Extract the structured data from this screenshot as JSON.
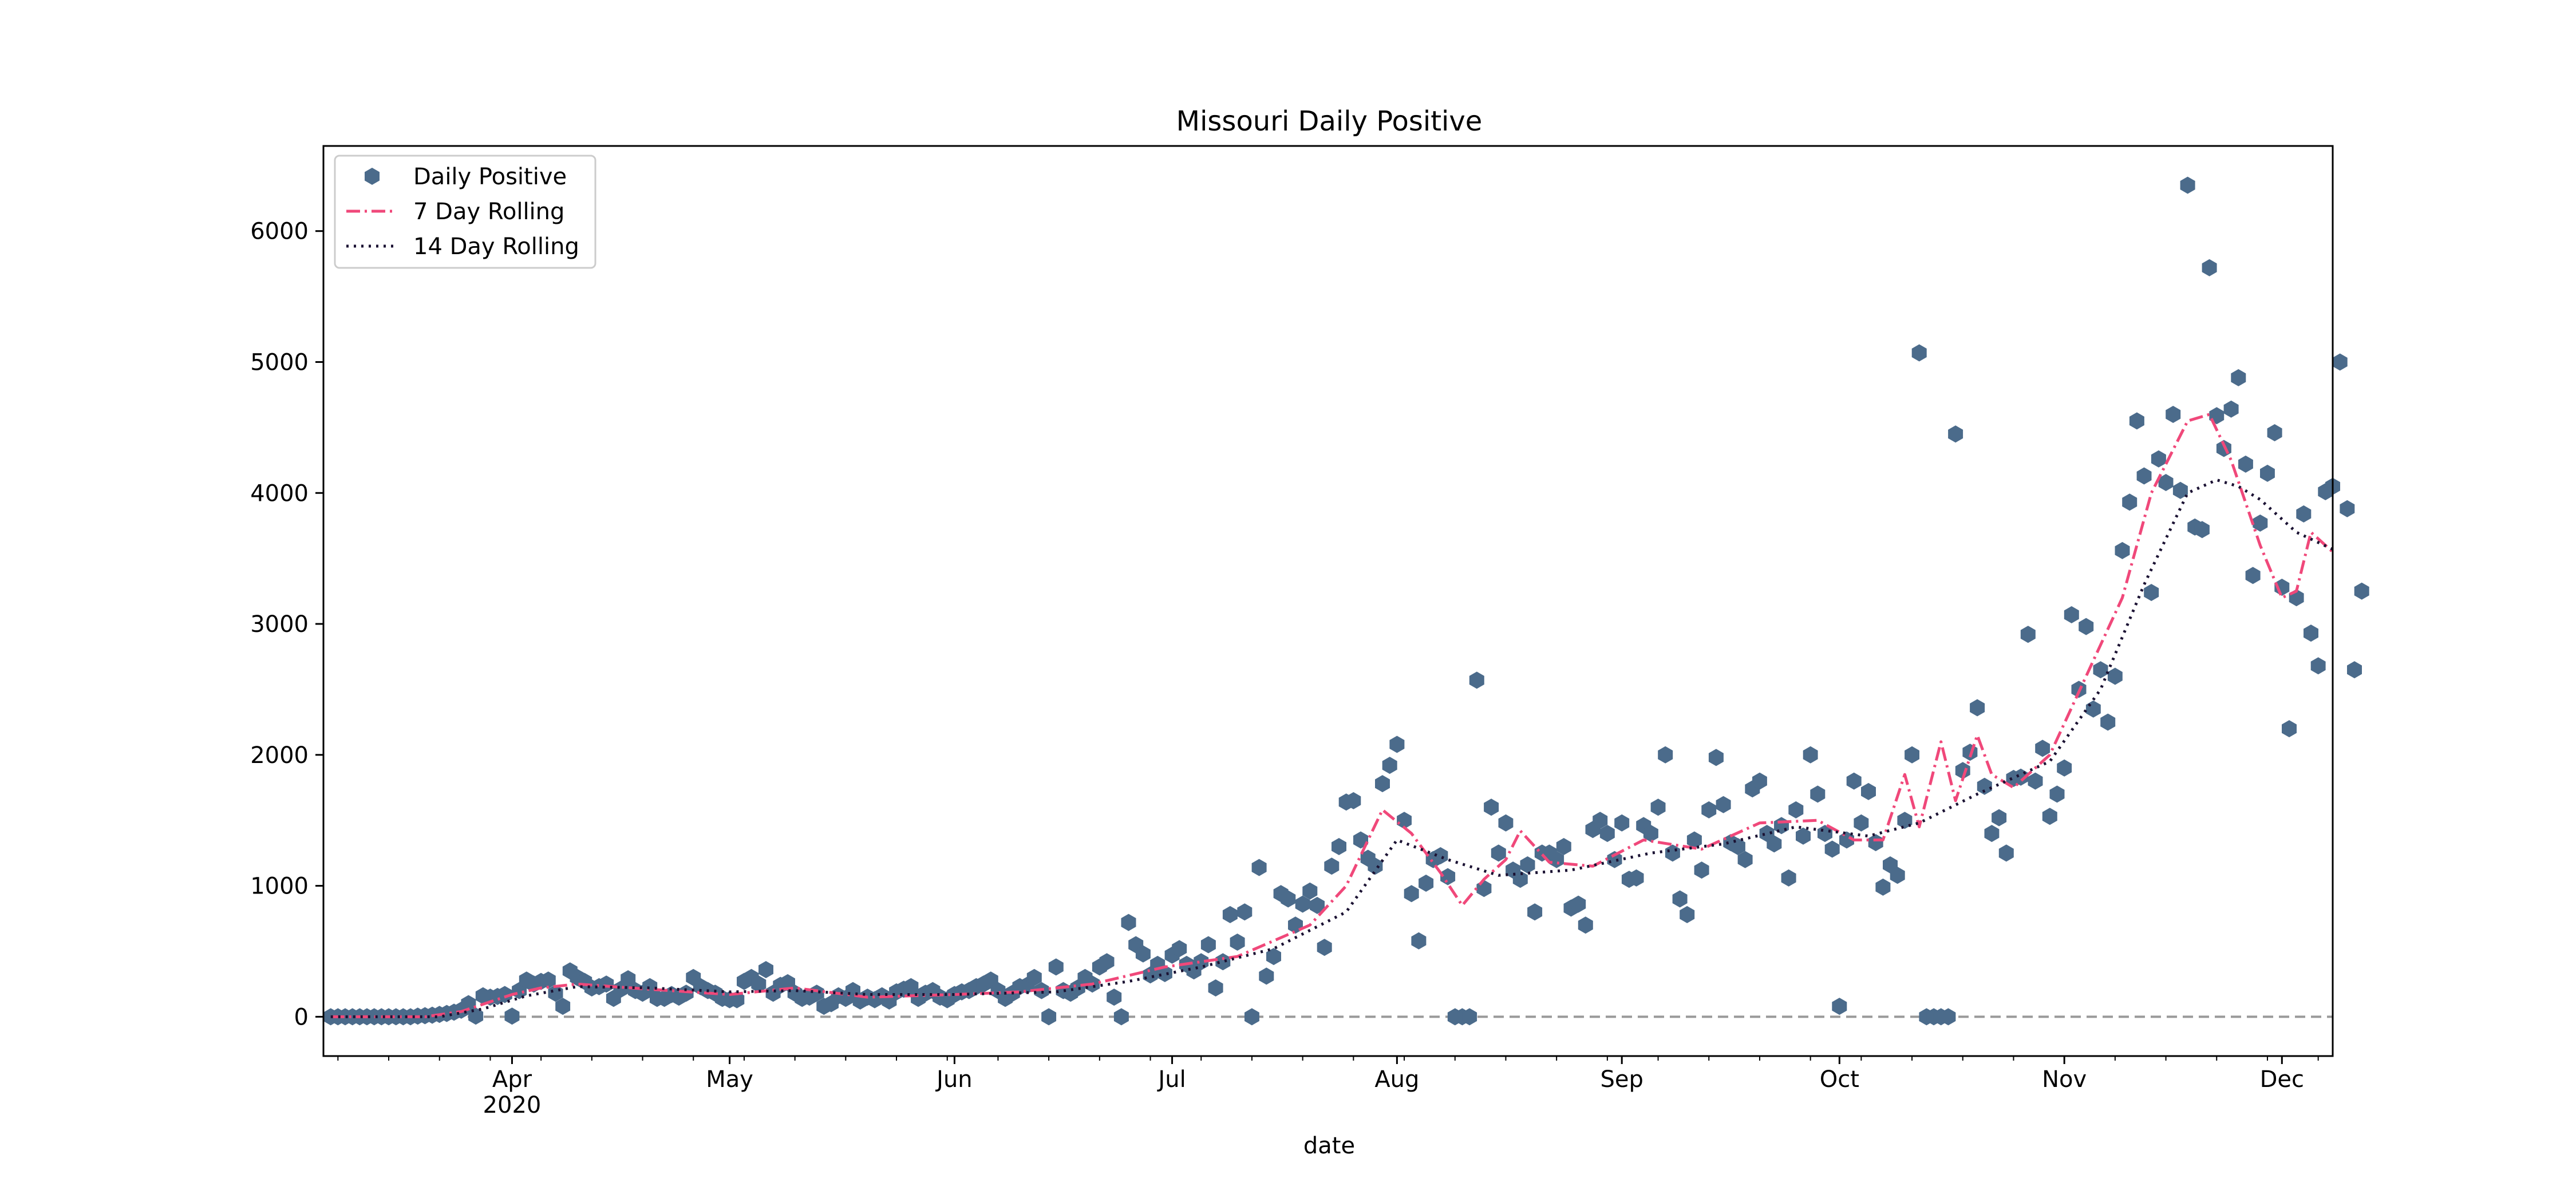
{
  "chart_data": {
    "type": "line",
    "title": "Missouri Daily Positive",
    "xlabel": "date",
    "ylabel": "",
    "start_date": "2020-03-07",
    "end_date": "2020-12-08",
    "xlim": [
      "2020-03-06",
      "2020-12-08"
    ],
    "ylim": [
      -300,
      6650
    ],
    "y_ticks": [
      0,
      1000,
      2000,
      3000,
      4000,
      5000,
      6000
    ],
    "x_ticks": [
      {
        "date": "2020-04-01",
        "label": "Apr",
        "sublabel": "2020"
      },
      {
        "date": "2020-05-01",
        "label": "May",
        "sublabel": ""
      },
      {
        "date": "2020-06-01",
        "label": "Jun",
        "sublabel": ""
      },
      {
        "date": "2020-07-01",
        "label": "Jul",
        "sublabel": ""
      },
      {
        "date": "2020-08-01",
        "label": "Aug",
        "sublabel": ""
      },
      {
        "date": "2020-09-01",
        "label": "Sep",
        "sublabel": ""
      },
      {
        "date": "2020-10-01",
        "label": "Oct",
        "sublabel": ""
      },
      {
        "date": "2020-11-01",
        "label": "Nov",
        "sublabel": ""
      },
      {
        "date": "2020-12-01",
        "label": "Dec",
        "sublabel": ""
      }
    ],
    "legend_placement": "upper-left",
    "grid": false,
    "zero_reference_line": {
      "y": 0,
      "color": "#999999",
      "style": "dashed"
    },
    "series": [
      {
        "name": "Daily Positive",
        "kind": "scatter",
        "marker": "hexagon",
        "color": "#4b6b8b",
        "values": [
          0,
          0,
          0,
          0,
          0,
          0,
          0,
          0,
          0,
          0,
          0,
          0,
          5,
          8,
          12,
          18,
          25,
          35,
          50,
          100,
          5,
          160,
          150,
          155,
          170,
          5,
          200,
          280,
          250,
          270,
          280,
          180,
          80,
          350,
          300,
          270,
          220,
          230,
          250,
          140,
          210,
          290,
          200,
          180,
          230,
          140,
          140,
          170,
          150,
          180,
          300,
          230,
          200,
          180,
          140,
          130,
          130,
          270,
          300,
          250,
          360,
          180,
          240,
          260,
          180,
          140,
          150,
          180,
          80,
          100,
          160,
          140,
          200,
          120,
          150,
          130,
          160,
          120,
          190,
          210,
          230,
          140,
          180,
          200,
          150,
          130,
          170,
          190,
          200,
          230,
          250,
          280,
          200,
          140,
          180,
          230,
          240,
          300,
          200,
          0,
          380,
          200,
          180,
          220,
          300,
          250,
          380,
          420,
          150,
          0,
          720,
          550,
          480,
          320,
          400,
          330,
          470,
          520,
          400,
          350,
          420,
          550,
          220,
          420,
          780,
          570,
          800,
          0,
          1140,
          310,
          460,
          940,
          900,
          700,
          860,
          960,
          850,
          530,
          1150,
          1300,
          1640,
          1650,
          1350,
          1210,
          1150,
          1780,
          1920,
          2080,
          1500,
          940,
          580,
          1020,
          1200,
          1230,
          1070,
          0,
          0,
          0,
          2570,
          980,
          1600,
          1250,
          1480,
          1120,
          1050,
          1160,
          800,
          1250,
          1250,
          1200,
          1300,
          830,
          860,
          700,
          1430,
          1500,
          1400,
          1200,
          1480,
          1050,
          1060,
          1460,
          1400,
          1600,
          2000,
          1250,
          900,
          780,
          1350,
          1120,
          1580,
          1980,
          1620,
          1330,
          1300,
          1200,
          1740,
          1800,
          1400,
          1320,
          1460,
          1060,
          1580,
          1380,
          2000,
          1700,
          1400,
          1280,
          80,
          1350,
          1800,
          1480,
          1720,
          1330,
          990,
          1160,
          1080,
          1500,
          2000,
          5070,
          0,
          0,
          0,
          0,
          4450,
          1880,
          2020,
          2360,
          1760,
          1400,
          1520,
          1250,
          1820,
          1830,
          2920,
          1800,
          2050,
          1530,
          1700,
          1900,
          3070,
          2500,
          2980,
          2350,
          2650,
          2250,
          2600,
          3560,
          3930,
          4550,
          4130,
          3240,
          4260,
          4080,
          4600,
          4020,
          6350,
          3740,
          3720,
          5720,
          4590,
          4340,
          4640,
          4880,
          4220,
          3370,
          3770,
          4150,
          4460,
          3280,
          2200,
          3200,
          3840,
          2930,
          2680,
          4010,
          4050,
          5000,
          3880,
          2650,
          3250
        ]
      },
      {
        "name": "7 Day Rolling",
        "kind": "line",
        "style": "dashdot",
        "color": "#f0487a",
        "points": [
          [
            "2020-03-07",
            0
          ],
          [
            "2020-03-20",
            0
          ],
          [
            "2020-03-25",
            40
          ],
          [
            "2020-04-01",
            170
          ],
          [
            "2020-04-05",
            220
          ],
          [
            "2020-04-10",
            250
          ],
          [
            "2020-04-20",
            210
          ],
          [
            "2020-05-01",
            170
          ],
          [
            "2020-05-10",
            220
          ],
          [
            "2020-05-20",
            150
          ],
          [
            "2020-06-01",
            170
          ],
          [
            "2020-06-10",
            190
          ],
          [
            "2020-06-20",
            250
          ],
          [
            "2020-06-30",
            380
          ],
          [
            "2020-07-10",
            460
          ],
          [
            "2020-07-20",
            700
          ],
          [
            "2020-07-25",
            1000
          ],
          [
            "2020-07-30",
            1580
          ],
          [
            "2020-08-03",
            1400
          ],
          [
            "2020-08-07",
            1100
          ],
          [
            "2020-08-10",
            850
          ],
          [
            "2020-08-13",
            1050
          ],
          [
            "2020-08-16",
            1200
          ],
          [
            "2020-08-18",
            1420
          ],
          [
            "2020-08-22",
            1180
          ],
          [
            "2020-08-28",
            1150
          ],
          [
            "2020-09-04",
            1350
          ],
          [
            "2020-09-12",
            1280
          ],
          [
            "2020-09-20",
            1480
          ],
          [
            "2020-09-28",
            1500
          ],
          [
            "2020-10-03",
            1350
          ],
          [
            "2020-10-07",
            1350
          ],
          [
            "2020-10-10",
            1850
          ],
          [
            "2020-10-12",
            1450
          ],
          [
            "2020-10-15",
            2100
          ],
          [
            "2020-10-17",
            1650
          ],
          [
            "2020-10-20",
            2150
          ],
          [
            "2020-10-22",
            1850
          ],
          [
            "2020-10-25",
            1750
          ],
          [
            "2020-10-30",
            2000
          ],
          [
            "2020-11-04",
            2600
          ],
          [
            "2020-11-09",
            3200
          ],
          [
            "2020-11-13",
            4000
          ],
          [
            "2020-11-18",
            4550
          ],
          [
            "2020-11-21",
            4600
          ],
          [
            "2020-11-24",
            4250
          ],
          [
            "2020-11-28",
            3600
          ],
          [
            "2020-12-01",
            3200
          ],
          [
            "2020-12-03",
            3250
          ],
          [
            "2020-12-05",
            3700
          ],
          [
            "2020-12-08",
            3550
          ]
        ]
      },
      {
        "name": "14 Day Rolling",
        "kind": "line",
        "style": "dotted",
        "color": "#1b1233",
        "points": [
          [
            "2020-03-07",
            0
          ],
          [
            "2020-03-22",
            0
          ],
          [
            "2020-03-28",
            60
          ],
          [
            "2020-04-03",
            160
          ],
          [
            "2020-04-10",
            230
          ],
          [
            "2020-04-20",
            220
          ],
          [
            "2020-05-01",
            190
          ],
          [
            "2020-05-10",
            200
          ],
          [
            "2020-05-20",
            170
          ],
          [
            "2020-06-01",
            170
          ],
          [
            "2020-06-15",
            190
          ],
          [
            "2020-06-25",
            270
          ],
          [
            "2020-07-05",
            380
          ],
          [
            "2020-07-15",
            520
          ],
          [
            "2020-07-25",
            800
          ],
          [
            "2020-08-01",
            1350
          ],
          [
            "2020-08-08",
            1200
          ],
          [
            "2020-08-15",
            1080
          ],
          [
            "2020-08-25",
            1120
          ],
          [
            "2020-09-05",
            1250
          ],
          [
            "2020-09-15",
            1320
          ],
          [
            "2020-09-25",
            1450
          ],
          [
            "2020-10-05",
            1380
          ],
          [
            "2020-10-12",
            1480
          ],
          [
            "2020-10-20",
            1700
          ],
          [
            "2020-10-30",
            1950
          ],
          [
            "2020-11-06",
            2500
          ],
          [
            "2020-11-12",
            3300
          ],
          [
            "2020-11-18",
            4000
          ],
          [
            "2020-11-22",
            4100
          ],
          [
            "2020-11-25",
            4050
          ],
          [
            "2020-11-28",
            3950
          ],
          [
            "2020-12-03",
            3700
          ],
          [
            "2020-12-08",
            3570
          ]
        ]
      }
    ]
  }
}
